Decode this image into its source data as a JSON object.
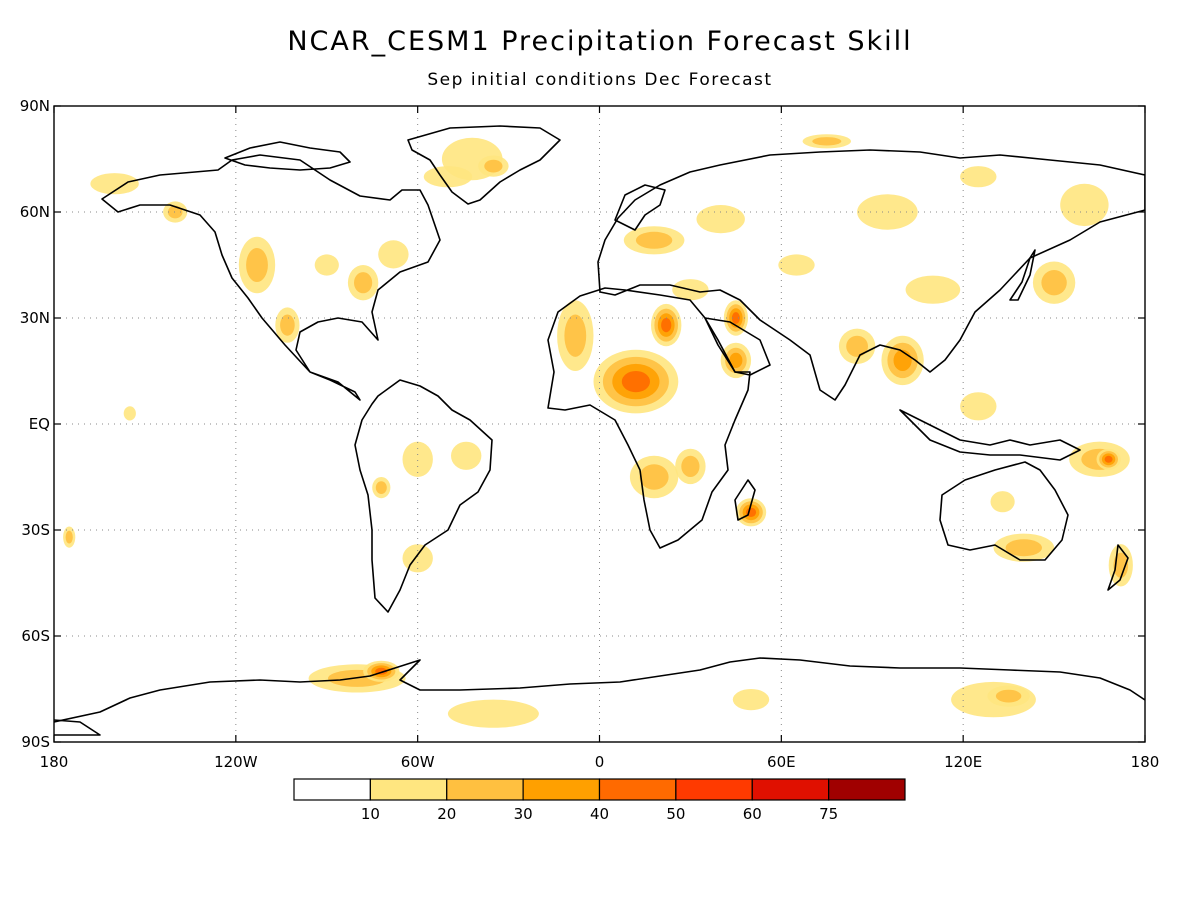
{
  "title": "NCAR_CESM1 Precipitation Forecast Skill",
  "subtitle": "Sep initial conditions  Dec Forecast",
  "map": {
    "lon_range": [
      -180,
      180
    ],
    "lat_range": [
      -90,
      90
    ],
    "lat_ticks": [
      {
        "value": 90,
        "label": "90N"
      },
      {
        "value": 60,
        "label": "60N"
      },
      {
        "value": 30,
        "label": "30N"
      },
      {
        "value": 0,
        "label": "EQ"
      },
      {
        "value": -30,
        "label": "30S"
      },
      {
        "value": -60,
        "label": "60S"
      },
      {
        "value": -90,
        "label": "90S"
      }
    ],
    "lon_ticks": [
      {
        "value": -180,
        "label": "180"
      },
      {
        "value": -120,
        "label": "120W"
      },
      {
        "value": -60,
        "label": "60W"
      },
      {
        "value": 0,
        "label": "0"
      },
      {
        "value": 60,
        "label": "60E"
      },
      {
        "value": 120,
        "label": "120E"
      },
      {
        "value": 180,
        "label": "180"
      }
    ],
    "grid": "dotted"
  },
  "colorbar": {
    "levels": [
      "10",
      "20",
      "30",
      "40",
      "50",
      "60",
      "75"
    ],
    "colors": [
      "#ffffff",
      "#ffe680",
      "#ffc040",
      "#ffa000",
      "#ff6a00",
      "#ff3a00",
      "#e01000",
      "#a00000"
    ]
  },
  "skill_regions": [
    {
      "lon": 15,
      "lat": 13,
      "rx": 7,
      "ry": 4,
      "level": 6
    },
    {
      "lon": 12,
      "lat": 12,
      "rx": 14,
      "ry": 9,
      "level": 4
    },
    {
      "lon": 22,
      "lat": 28,
      "rx": 5,
      "ry": 6,
      "level": 4
    },
    {
      "lon": 45,
      "lat": 30,
      "rx": 4,
      "ry": 5,
      "level": 4
    },
    {
      "lon": 45,
      "lat": 18,
      "rx": 5,
      "ry": 5,
      "level": 3
    },
    {
      "lon": 50,
      "lat": -25,
      "rx": 5,
      "ry": 4,
      "level": 4
    },
    {
      "lon": -8,
      "lat": 25,
      "rx": 6,
      "ry": 10,
      "level": 2
    },
    {
      "lon": 18,
      "lat": -15,
      "rx": 8,
      "ry": 6,
      "level": 2
    },
    {
      "lon": 30,
      "lat": -12,
      "rx": 5,
      "ry": 5,
      "level": 2
    },
    {
      "lon": -113,
      "lat": 45,
      "rx": 6,
      "ry": 8,
      "level": 2
    },
    {
      "lon": -103,
      "lat": 28,
      "rx": 4,
      "ry": 5,
      "level": 2
    },
    {
      "lon": -78,
      "lat": 40,
      "rx": 5,
      "ry": 5,
      "level": 2
    },
    {
      "lon": -68,
      "lat": 48,
      "rx": 5,
      "ry": 4,
      "level": 1
    },
    {
      "lon": -90,
      "lat": 45,
      "rx": 4,
      "ry": 3,
      "level": 1
    },
    {
      "lon": -160,
      "lat": 68,
      "rx": 8,
      "ry": 3,
      "level": 1
    },
    {
      "lon": -140,
      "lat": 60,
      "rx": 4,
      "ry": 3,
      "level": 2
    },
    {
      "lon": -42,
      "lat": 75,
      "rx": 10,
      "ry": 6,
      "level": 1
    },
    {
      "lon": -35,
      "lat": 73,
      "rx": 5,
      "ry": 3,
      "level": 2
    },
    {
      "lon": 18,
      "lat": 52,
      "rx": 10,
      "ry": 4,
      "level": 2
    },
    {
      "lon": 40,
      "lat": 58,
      "rx": 8,
      "ry": 4,
      "level": 1
    },
    {
      "lon": 95,
      "lat": 60,
      "rx": 10,
      "ry": 5,
      "level": 1
    },
    {
      "lon": 125,
      "lat": 70,
      "rx": 6,
      "ry": 3,
      "level": 1
    },
    {
      "lon": 160,
      "lat": 62,
      "rx": 8,
      "ry": 6,
      "level": 1
    },
    {
      "lon": 150,
      "lat": 40,
      "rx": 7,
      "ry": 6,
      "level": 2
    },
    {
      "lon": 110,
      "lat": 38,
      "rx": 9,
      "ry": 4,
      "level": 1
    },
    {
      "lon": 100,
      "lat": 18,
      "rx": 7,
      "ry": 7,
      "level": 3
    },
    {
      "lon": 85,
      "lat": 22,
      "rx": 6,
      "ry": 5,
      "level": 2
    },
    {
      "lon": 125,
      "lat": 5,
      "rx": 6,
      "ry": 4,
      "level": 1
    },
    {
      "lon": 165,
      "lat": -10,
      "rx": 10,
      "ry": 5,
      "level": 2
    },
    {
      "lon": 168,
      "lat": -10,
      "rx": 4,
      "ry": 3,
      "level": 4
    },
    {
      "lon": 140,
      "lat": -35,
      "rx": 10,
      "ry": 4,
      "level": 2
    },
    {
      "lon": 133,
      "lat": -22,
      "rx": 4,
      "ry": 3,
      "level": 1
    },
    {
      "lon": 172,
      "lat": -40,
      "rx": 4,
      "ry": 6,
      "level": 2
    },
    {
      "lon": -60,
      "lat": -10,
      "rx": 5,
      "ry": 5,
      "level": 1
    },
    {
      "lon": -44,
      "lat": -9,
      "rx": 5,
      "ry": 4,
      "level": 1
    },
    {
      "lon": -72,
      "lat": -18,
      "rx": 3,
      "ry": 3,
      "level": 2
    },
    {
      "lon": -60,
      "lat": -38,
      "rx": 5,
      "ry": 4,
      "level": 1
    },
    {
      "lon": -80,
      "lat": -72,
      "rx": 16,
      "ry": 4,
      "level": 2
    },
    {
      "lon": -72,
      "lat": -70,
      "rx": 6,
      "ry": 3,
      "level": 4
    },
    {
      "lon": -35,
      "lat": -82,
      "rx": 15,
      "ry": 4,
      "level": 1
    },
    {
      "lon": 50,
      "lat": -78,
      "rx": 6,
      "ry": 3,
      "level": 1
    },
    {
      "lon": 130,
      "lat": -78,
      "rx": 14,
      "ry": 5,
      "level": 1
    },
    {
      "lon": 135,
      "lat": -77,
      "rx": 7,
      "ry": 3,
      "level": 2
    },
    {
      "lon": -175,
      "lat": -32,
      "rx": 2,
      "ry": 3,
      "level": 2
    },
    {
      "lon": -155,
      "lat": 3,
      "rx": 2,
      "ry": 2,
      "level": 1
    },
    {
      "lon": -50,
      "lat": 70,
      "rx": 8,
      "ry": 3,
      "level": 1
    },
    {
      "lon": 75,
      "lat": 80,
      "rx": 8,
      "ry": 2,
      "level": 2
    },
    {
      "lon": 30,
      "lat": 38,
      "rx": 6,
      "ry": 3,
      "level": 1
    },
    {
      "lon": 65,
      "lat": 45,
      "rx": 6,
      "ry": 3,
      "level": 1
    }
  ]
}
